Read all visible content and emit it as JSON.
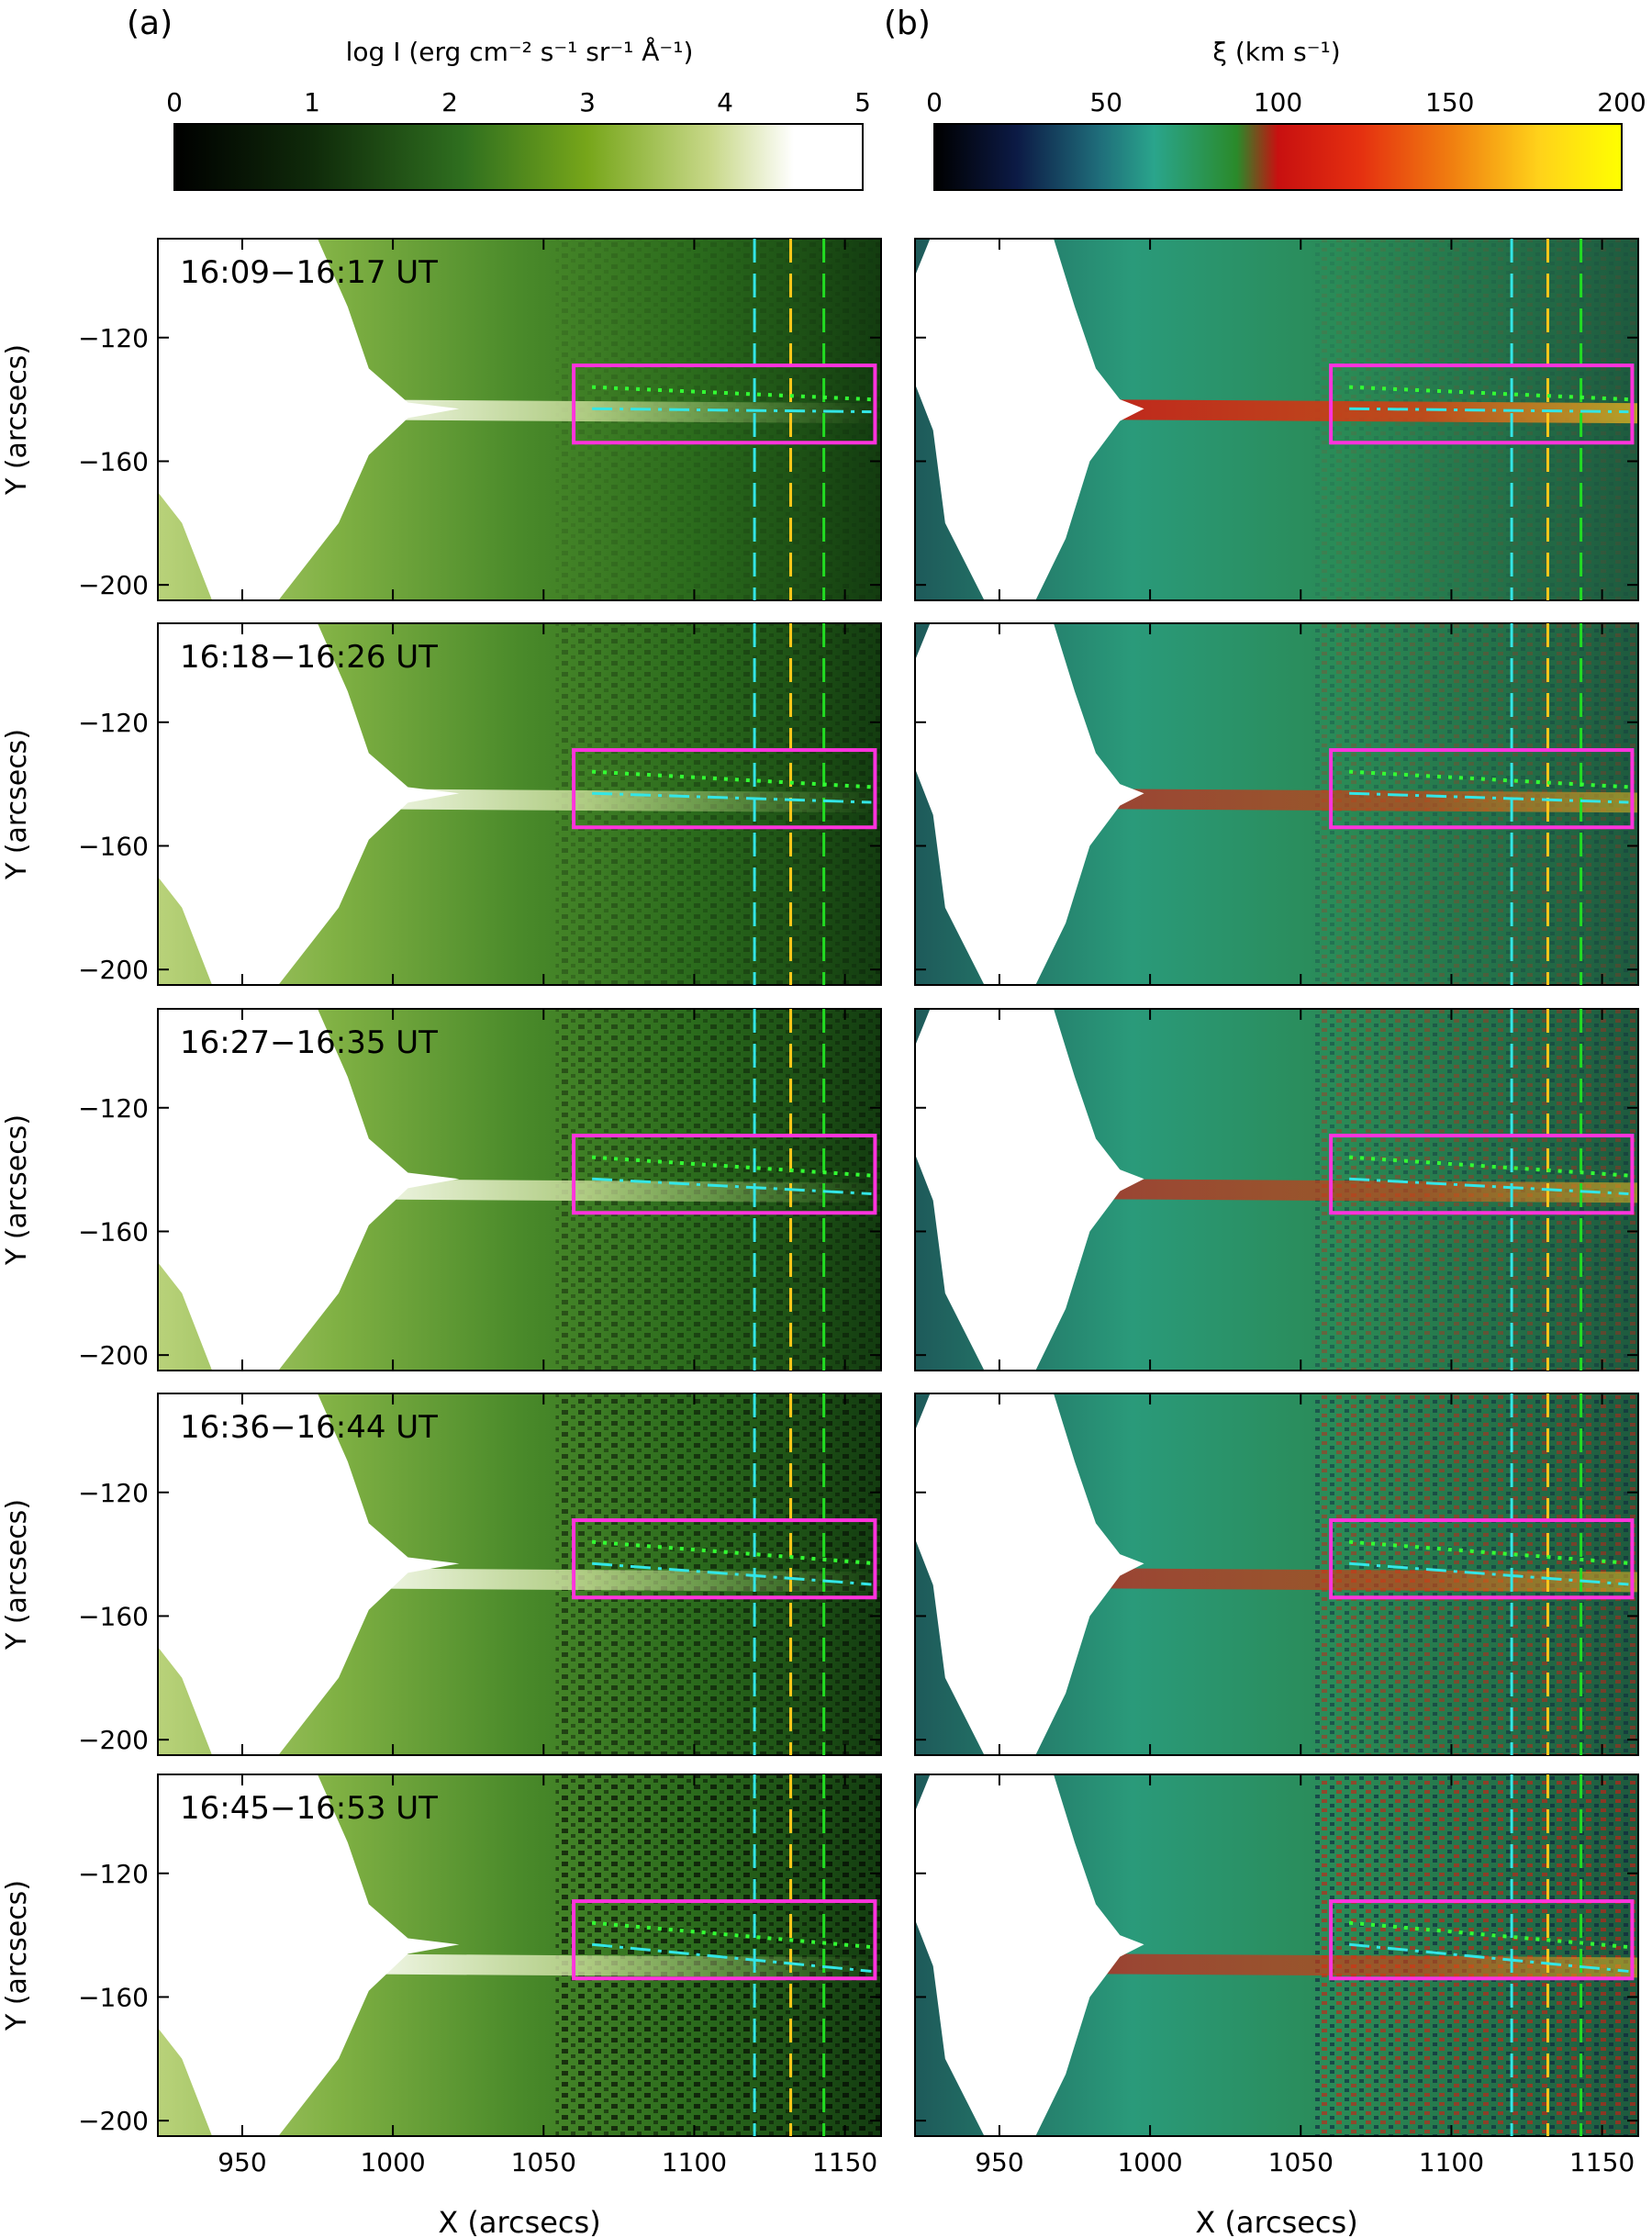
{
  "figure": {
    "panel_a_label": "(a)",
    "panel_b_label": "(b)",
    "colorbar_a": {
      "title": "log I (erg cm⁻² s⁻¹ sr⁻¹ Å⁻¹)",
      "ticks": [
        "0",
        "1",
        "2",
        "3",
        "4",
        "5"
      ],
      "range": [
        0,
        5
      ]
    },
    "colorbar_b": {
      "title": "ξ (km s⁻¹)",
      "ticks": [
        "0",
        "50",
        "100",
        "150",
        "200"
      ],
      "range": [
        0,
        200
      ]
    },
    "time_labels": [
      "16:09−16:17 UT",
      "16:18−16:26 UT",
      "16:27−16:35 UT",
      "16:36−16:44 UT",
      "16:45−16:53 UT"
    ],
    "xlabel": "X (arcsecs)",
    "ylabel": "Y (arcsecs)",
    "x_ticks": [
      "950",
      "1000",
      "1050",
      "1100",
      "1150"
    ],
    "y_ticks": [
      "−120",
      "−160",
      "−200"
    ],
    "colors": {
      "box": "#ff33dd",
      "cyan": "#33e6e6",
      "orange": "#ffc61a",
      "green": "#22dd22",
      "dotted": "#33ff33"
    }
  },
  "chart_data": [
    {
      "type": "heatmap",
      "panel": "(a)",
      "quantity": "log I",
      "xlim": [
        922,
        1162
      ],
      "ylim": [
        -205,
        -88
      ],
      "x_ticks": [
        950,
        1000,
        1050,
        1100,
        1150
      ],
      "y_ticks": [
        -120,
        -160,
        -200
      ],
      "value_range": [
        0,
        5
      ],
      "time_ranges": [
        "16:09−16:17 UT",
        "16:18−16:26 UT",
        "16:27−16:35 UT",
        "16:36−16:44 UT",
        "16:45−16:53 UT"
      ],
      "box": {
        "x": [
          1060,
          1160
        ],
        "y": [
          -154,
          -129
        ]
      },
      "vertical_lines_x": [
        1120,
        1132,
        1143
      ]
    },
    {
      "type": "heatmap",
      "panel": "(b)",
      "quantity": "ξ",
      "xlim": [
        922,
        1162
      ],
      "ylim": [
        -205,
        -88
      ],
      "x_ticks": [
        950,
        1000,
        1050,
        1100,
        1150
      ],
      "y_ticks": [
        -120,
        -160,
        -200
      ],
      "value_range": [
        0,
        200
      ],
      "time_ranges": [
        "16:09−16:17 UT",
        "16:18−16:26 UT",
        "16:27−16:35 UT",
        "16:36−16:44 UT",
        "16:45−16:53 UT"
      ],
      "box": {
        "x": [
          1060,
          1160
        ],
        "y": [
          -154,
          -129
        ]
      },
      "vertical_lines_x": [
        1120,
        1132,
        1143
      ]
    }
  ]
}
